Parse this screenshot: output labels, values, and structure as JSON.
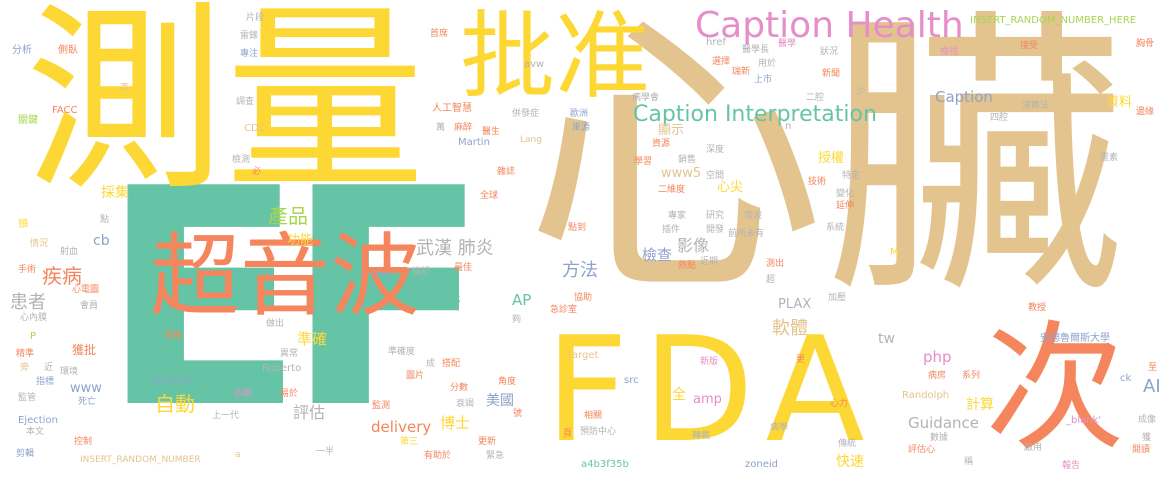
{
  "colors": {
    "yellow": "#fdd835",
    "tan": "#e4c48e",
    "teal": "#66c4a6",
    "orange": "#f4855c",
    "pink": "#e58fc9",
    "blue": "#8ea2cc",
    "lime": "#a6d64f",
    "gray": "#b3b3b3"
  },
  "words": {
    "big_ef": "EF",
    "xinzang": "心臟",
    "celiang": "測量",
    "fda": "FDA",
    "chaoyinbo": "超音波",
    "ci": "次",
    "pizhun": "批准",
    "caption_health": "Caption Health",
    "caption_interpretation": "Caption Interpretation",
    "caption": "Caption",
    "chanpin": "產品",
    "ruanti": "軟體",
    "jibing": "疾病",
    "huanzhe": "患者",
    "xinxueguan": "心血管",
    "zidong": "自動",
    "wuhan_feiyan": "武漢 肺炎",
    "fangfa": "方法",
    "yingxiang": "影像",
    "jiancha": "檢查",
    "gongneng": "功能",
    "zhunque": "準確",
    "pinggu": "評估",
    "meiguo": "美國",
    "boshi": "博士",
    "delivery": "delivery",
    "technews": "technews",
    "ap": "AP",
    "cb": "cb",
    "www5": "www5",
    "xinjian": "心尖",
    "shouquan": "授權",
    "php": "php",
    "jisuan": "計算",
    "ai": "AI",
    "guidance": "Guidance",
    "kuaisu": "快速",
    "amp": "amp",
    "quan": "全",
    "tw": "tw",
    "plax": "PLAX",
    "caiji": "採集",
    "ziliao": "資料",
    "xianshi": "顯示",
    "fraction": "Fraction",
    "huopi": "獲批",
    "www": "www",
    "martin": "Martin",
    "ejection": "Ejection",
    "insert_rand_1": "INSERT_RANDOM_NUMBER_HERE",
    "insert_rand_2": "INSERT_RANDOM_NUMBER",
    "a": "a",
    "a4b3f35b": "a4b3f35b",
    "zoneid": "zoneid",
    "randolph": "Randolph",
    "roberto": "Roberto",
    "target": "target",
    "src": "src",
    "img": "img",
    "href": "href",
    "avw": "avw",
    "lang": "Lang",
    "fanhua": "FACC",
    "cdc": "CDC",
    "blank": "_blank'",
    "ck": "ck",
    "p": "P",
    "m": "M",
    "n": "n",
    "andongsi": "安德魯爾斯大學",
    "fenxi": "分析",
    "ceyang": "側臥",
    "gao": "高",
    "guanjian": "關鍵",
    "jiance": "檢測",
    "bi": "必",
    "jing": "頸",
    "qingkuang": "情況",
    "shexue": "射血",
    "dian": "點",
    "shoushu": "手術",
    "xindiantu": "心電圖",
    "huiyuan": "會員",
    "xinneimo": "心內膜",
    "jingzhun": "精準",
    "pang": "旁",
    "jin": "近",
    "huanjing": "環境",
    "zhibiao": "指標",
    "siwang": "死亡",
    "jianguan": "監管",
    "benwen": "本文",
    "kongzhi": "控制",
    "jianji": "剪輯",
    "pianduan": "片段",
    "leilu": "雷錄",
    "zhuanzhu": "專注",
    "shouxi": "首席",
    "diaocha": "調查",
    "rengong_zhihui": "人工智慧",
    "wan": "萬",
    "mazui": "麻醉",
    "yisheng": "醫生",
    "bingfazheng": "併發症",
    "ouzhou": "歐洲",
    "laiyuan": "來源",
    "zazhi": "雜誌",
    "quanqiu": "全球",
    "bingxuehui": "病學會",
    "yixuechang": "醫學長",
    "yixue": "醫學",
    "xuanze": "選擇",
    "yongyu": "用於",
    "ruixin": "瑞新",
    "zhuangkuang": "狀況",
    "jiance2": "檢視",
    "jieshou": "接受",
    "jingmo": "胸骨",
    "xinwen": "新聞",
    "shangshi": "上市",
    "erjiang": "二腔",
    "sijiang": "四腔",
    "yansuanfa": "演算法",
    "bianyuan": "邊緣",
    "zhiyuan": "資源",
    "shenzhan": "深度",
    "xuexi": "學習",
    "xiaoshou": "銷售",
    "kongjian": "空間",
    "erwei": "二維度",
    "jishu": "技術",
    "tezhen": "特定",
    "bianhua": "變化",
    "yanshen": "延伸",
    "huasu": "畫素",
    "zhuanjia": "專家",
    "yanjiu": "研究",
    "yinbo": "音波",
    "chajian": "插件",
    "kaifa": "開發",
    "qiansuoweiyou": "前所未有",
    "xitong": "系統",
    "diandao": "點到",
    "redian": "熱點",
    "jinqi": "近期",
    "cechu": "測出",
    "chao": "超",
    "jiaya": "加壓",
    "miaohui": "描記",
    "zuijia": "最佳",
    "zuochu": "做出",
    "yichang": "異常",
    "xiewei": "協助",
    "jizhenshi": "急診室",
    "changzhou": "長軸",
    "zhenduan": "診斷",
    "yifa": "易於",
    "shangyidai": "上一代",
    "zhunquedu": "準確度",
    "cheng": "成",
    "dapei": "搭配",
    "tupian": "圖片",
    "fenshu": "分數",
    "jiaodu": "角度",
    "shuaituo": "衰竭",
    "jiance3": "監測",
    "xiangguan": "相關",
    "disan": "第三",
    "yufang_zhongxin": "預防中心",
    "zhuanzai": "轉載",
    "genxin": "更新",
    "youzhu": "有助於",
    "jinji": "緊急",
    "yiban": "一半",
    "xinban": "新版",
    "geng": "更",
    "bingfang": "病房",
    "xilie": "系列",
    "jiaoshou": "教授",
    "xinli": "心力",
    "shujuxian": "數據",
    "chuantong": "傳統",
    "pingguxin": "評估心",
    "bingxue": "病學",
    "qiyong": "啟用",
    "chengxiang": "成像",
    "yuedu": "閱讀",
    "baogao": "報告",
    "cheng2": "稱",
    "huo": "獲",
    "shao": "少",
    "jing2": "夠",
    "zhi": "至",
    "hao": "號",
    "yu": "頁"
  }
}
